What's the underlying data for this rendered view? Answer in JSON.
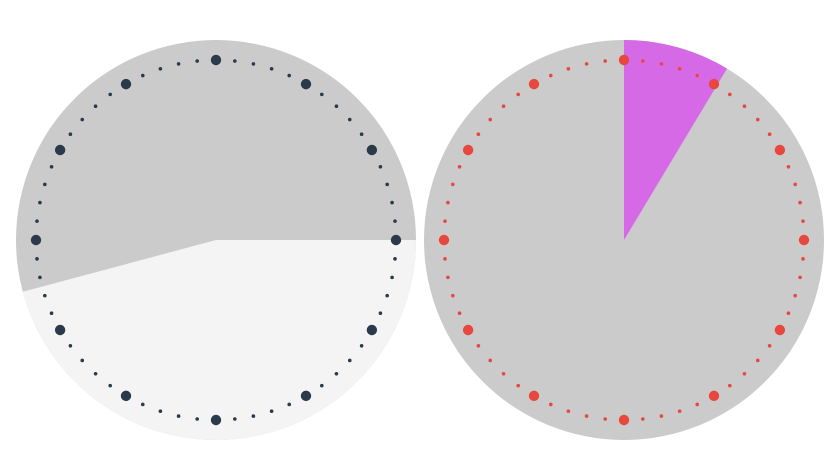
{
  "dials": [
    {
      "id": "left",
      "face_color": "#cbcbcb",
      "sector_color": "#f4f4f4",
      "sector_start_deg": 90,
      "sector_end_deg": 255,
      "tick_color": "#2a3a4a"
    },
    {
      "id": "right",
      "face_color": "#cbcbcb",
      "sector_color": "#d66ae6",
      "sector_start_deg": 0,
      "sector_end_deg": 31,
      "tick_color": "#e8473f"
    }
  ],
  "partial_dial_edge_color": "#e2e2e2"
}
